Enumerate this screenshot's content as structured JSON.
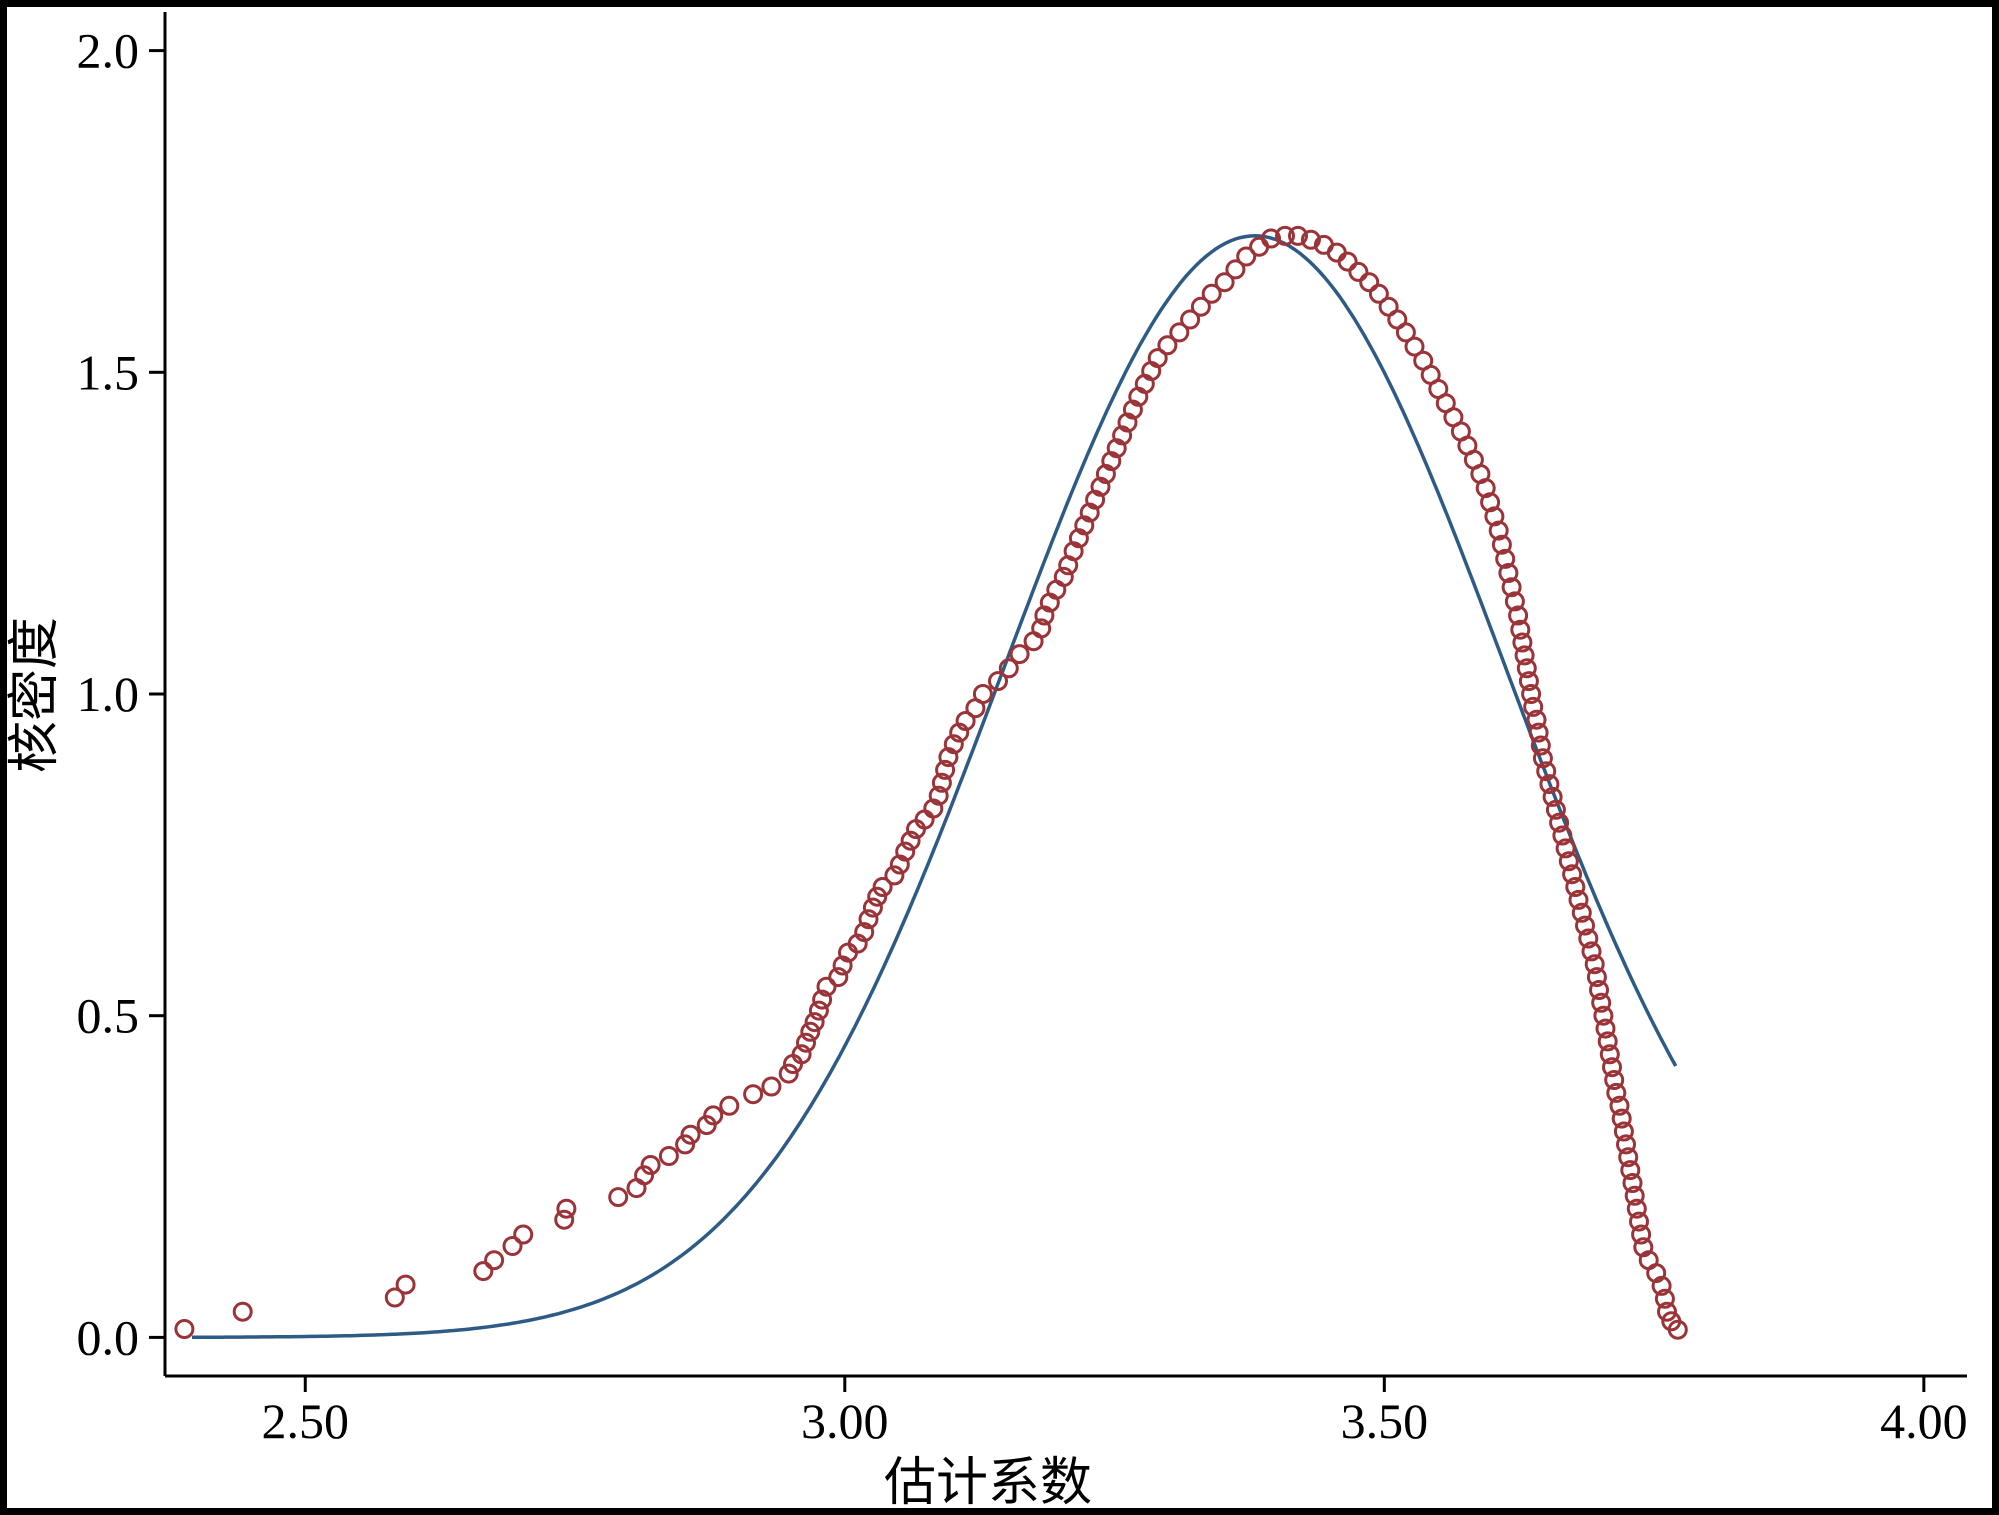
{
  "chart_data": {
    "type": "scatter",
    "title": "",
    "xlabel": "估计系数",
    "ylabel": "核密度",
    "xlim": [
      2.37,
      4.04
    ],
    "ylim": [
      -0.06,
      2.06
    ],
    "x_ticks": [
      {
        "value": 2.5,
        "label": "2.50"
      },
      {
        "value": 3.0,
        "label": "3.00"
      },
      {
        "value": 3.5,
        "label": "3.50"
      },
      {
        "value": 4.0,
        "label": "4.00"
      }
    ],
    "y_ticks": [
      {
        "value": 0.0,
        "label": "0.0"
      },
      {
        "value": 0.5,
        "label": "0.5"
      },
      {
        "value": 1.0,
        "label": "1.0"
      },
      {
        "value": 1.5,
        "label": "1.5"
      },
      {
        "value": 2.0,
        "label": "2.0"
      }
    ],
    "grid": false,
    "legend": "none",
    "series": [
      {
        "type": "scatter",
        "color": "#9b3438",
        "marker": "open-circle",
        "points": [
          [
            2.388,
            0.013
          ],
          [
            2.442,
            0.04
          ],
          [
            2.583,
            0.062
          ],
          [
            2.593,
            0.082
          ],
          [
            2.665,
            0.103
          ],
          [
            2.675,
            0.12
          ],
          [
            2.692,
            0.142
          ],
          [
            2.702,
            0.16
          ],
          [
            2.74,
            0.183
          ],
          [
            2.742,
            0.2
          ],
          [
            2.79,
            0.218
          ],
          [
            2.807,
            0.232
          ],
          [
            2.814,
            0.252
          ],
          [
            2.82,
            0.268
          ],
          [
            2.837,
            0.282
          ],
          [
            2.852,
            0.3
          ],
          [
            2.857,
            0.315
          ],
          [
            2.872,
            0.33
          ],
          [
            2.878,
            0.345
          ],
          [
            2.893,
            0.36
          ],
          [
            2.915,
            0.378
          ],
          [
            2.932,
            0.39
          ],
          [
            2.948,
            0.41
          ],
          [
            2.952,
            0.425
          ],
          [
            2.96,
            0.44
          ],
          [
            2.964,
            0.458
          ],
          [
            2.968,
            0.475
          ],
          [
            2.972,
            0.49
          ],
          [
            2.976,
            0.508
          ],
          [
            2.979,
            0.525
          ],
          [
            2.983,
            0.545
          ],
          [
            2.994,
            0.56
          ],
          [
            2.998,
            0.578
          ],
          [
            3.003,
            0.598
          ],
          [
            3.012,
            0.612
          ],
          [
            3.018,
            0.63
          ],
          [
            3.022,
            0.65
          ],
          [
            3.026,
            0.668
          ],
          [
            3.03,
            0.685
          ],
          [
            3.035,
            0.7
          ],
          [
            3.046,
            0.718
          ],
          [
            3.051,
            0.735
          ],
          [
            3.056,
            0.755
          ],
          [
            3.061,
            0.772
          ],
          [
            3.066,
            0.79
          ],
          [
            3.074,
            0.805
          ],
          [
            3.082,
            0.822
          ],
          [
            3.087,
            0.842
          ],
          [
            3.09,
            0.862
          ],
          [
            3.093,
            0.882
          ],
          [
            3.096,
            0.902
          ],
          [
            3.101,
            0.922
          ],
          [
            3.106,
            0.94
          ],
          [
            3.112,
            0.958
          ],
          [
            3.121,
            0.978
          ],
          [
            3.128,
            1.0
          ],
          [
            3.142,
            1.02
          ],
          [
            3.152,
            1.04
          ],
          [
            3.162,
            1.062
          ],
          [
            3.175,
            1.082
          ],
          [
            3.182,
            1.102
          ],
          [
            3.185,
            1.122
          ],
          [
            3.19,
            1.142
          ],
          [
            3.196,
            1.162
          ],
          [
            3.203,
            1.182
          ],
          [
            3.207,
            1.2
          ],
          [
            3.212,
            1.222
          ],
          [
            3.217,
            1.242
          ],
          [
            3.222,
            1.262
          ],
          [
            3.227,
            1.282
          ],
          [
            3.232,
            1.302
          ],
          [
            3.237,
            1.322
          ],
          [
            3.242,
            1.342
          ],
          [
            3.247,
            1.362
          ],
          [
            3.252,
            1.382
          ],
          [
            3.257,
            1.402
          ],
          [
            3.262,
            1.422
          ],
          [
            3.267,
            1.442
          ],
          [
            3.272,
            1.462
          ],
          [
            3.278,
            1.482
          ],
          [
            3.284,
            1.502
          ],
          [
            3.29,
            1.522
          ],
          [
            3.299,
            1.542
          ],
          [
            3.31,
            1.562
          ],
          [
            3.32,
            1.582
          ],
          [
            3.33,
            1.602
          ],
          [
            3.34,
            1.622
          ],
          [
            3.352,
            1.64
          ],
          [
            3.362,
            1.66
          ],
          [
            3.372,
            1.68
          ],
          [
            3.384,
            1.695
          ],
          [
            3.395,
            1.708
          ],
          [
            3.408,
            1.712
          ],
          [
            3.42,
            1.712
          ],
          [
            3.432,
            1.706
          ],
          [
            3.444,
            1.698
          ],
          [
            3.456,
            1.686
          ],
          [
            3.466,
            1.672
          ],
          [
            3.476,
            1.656
          ],
          [
            3.486,
            1.64
          ],
          [
            3.495,
            1.622
          ],
          [
            3.504,
            1.602
          ],
          [
            3.512,
            1.582
          ],
          [
            3.52,
            1.562
          ],
          [
            3.528,
            1.54
          ],
          [
            3.536,
            1.518
          ],
          [
            3.543,
            1.496
          ],
          [
            3.55,
            1.474
          ],
          [
            3.557,
            1.452
          ],
          [
            3.564,
            1.43
          ],
          [
            3.571,
            1.408
          ],
          [
            3.577,
            1.386
          ],
          [
            3.583,
            1.364
          ],
          [
            3.589,
            1.342
          ],
          [
            3.594,
            1.32
          ],
          [
            3.598,
            1.298
          ],
          [
            3.602,
            1.276
          ],
          [
            3.606,
            1.254
          ],
          [
            3.609,
            1.232
          ],
          [
            3.612,
            1.21
          ],
          [
            3.615,
            1.188
          ],
          [
            3.618,
            1.166
          ],
          [
            3.621,
            1.144
          ],
          [
            3.624,
            1.122
          ],
          [
            3.626,
            1.1
          ],
          [
            3.628,
            1.08
          ],
          [
            3.63,
            1.06
          ],
          [
            3.632,
            1.04
          ],
          [
            3.634,
            1.02
          ],
          [
            3.636,
            1.0
          ],
          [
            3.638,
            0.98
          ],
          [
            3.641,
            0.96
          ],
          [
            3.643,
            0.94
          ],
          [
            3.645,
            0.92
          ],
          [
            3.647,
            0.9
          ],
          [
            3.65,
            0.88
          ],
          [
            3.653,
            0.86
          ],
          [
            3.656,
            0.84
          ],
          [
            3.659,
            0.82
          ],
          [
            3.662,
            0.8
          ],
          [
            3.665,
            0.78
          ],
          [
            3.668,
            0.76
          ],
          [
            3.671,
            0.74
          ],
          [
            3.674,
            0.72
          ],
          [
            3.677,
            0.7
          ],
          [
            3.68,
            0.68
          ],
          [
            3.683,
            0.66
          ],
          [
            3.686,
            0.64
          ],
          [
            3.689,
            0.62
          ],
          [
            3.692,
            0.6
          ],
          [
            3.695,
            0.58
          ],
          [
            3.697,
            0.56
          ],
          [
            3.699,
            0.54
          ],
          [
            3.701,
            0.52
          ],
          [
            3.703,
            0.5
          ],
          [
            3.705,
            0.48
          ],
          [
            3.707,
            0.46
          ],
          [
            3.709,
            0.44
          ],
          [
            3.711,
            0.42
          ],
          [
            3.713,
            0.4
          ],
          [
            3.715,
            0.38
          ],
          [
            3.718,
            0.36
          ],
          [
            3.72,
            0.34
          ],
          [
            3.722,
            0.32
          ],
          [
            3.724,
            0.3
          ],
          [
            3.726,
            0.28
          ],
          [
            3.728,
            0.26
          ],
          [
            3.73,
            0.24
          ],
          [
            3.732,
            0.22
          ],
          [
            3.734,
            0.2
          ],
          [
            3.736,
            0.18
          ],
          [
            3.738,
            0.16
          ],
          [
            3.74,
            0.14
          ],
          [
            3.745,
            0.12
          ],
          [
            3.752,
            0.1
          ],
          [
            3.757,
            0.08
          ],
          [
            3.76,
            0.06
          ],
          [
            3.762,
            0.04
          ],
          [
            3.766,
            0.025
          ],
          [
            3.772,
            0.012
          ]
        ]
      },
      {
        "type": "line",
        "color": "#2e5b86",
        "distribution": "normal",
        "mean": 3.38,
        "sd": 0.233,
        "x_range": [
          2.395,
          3.77
        ]
      }
    ]
  }
}
